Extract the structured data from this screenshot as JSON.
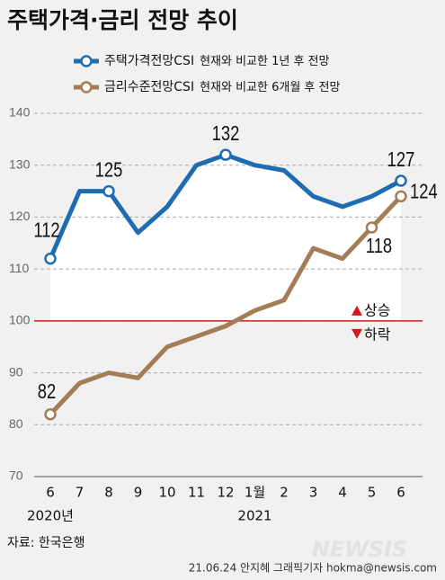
{
  "chart_data": {
    "type": "line",
    "title": "주택가격·금리 전망 추이",
    "categories": [
      "6",
      "7",
      "8",
      "9",
      "10",
      "11",
      "12",
      "1월",
      "2",
      "3",
      "4",
      "5",
      "6"
    ],
    "year_labels": [
      "2020년",
      null,
      null,
      null,
      null,
      null,
      null,
      "2021",
      null,
      null,
      null,
      null,
      null
    ],
    "series": [
      {
        "name": "주택가격전망CSI",
        "description": "현재와 비교한 1년 후 전망",
        "color": "#1f6cb0",
        "values": [
          112,
          125,
          125,
          117,
          122,
          130,
          132,
          130,
          129,
          124,
          122,
          124,
          127
        ],
        "value_labels": [
          "112",
          null,
          "125",
          null,
          null,
          null,
          "132",
          null,
          null,
          null,
          null,
          null,
          "127"
        ]
      },
      {
        "name": "금리수준전망CSI",
        "description": "현재와 비교한 6개월 후 전망",
        "color": "#a37d55",
        "values": [
          82,
          88,
          90,
          89,
          95,
          97,
          99,
          102,
          104,
          114,
          112,
          118,
          124
        ],
        "value_labels": [
          "82",
          null,
          null,
          null,
          null,
          null,
          null,
          null,
          null,
          null,
          null,
          "118",
          "124"
        ]
      }
    ],
    "ylim": [
      70,
      140
    ],
    "yticks": [
      70,
      80,
      90,
      100,
      110,
      120,
      130,
      140
    ],
    "grid": true,
    "reference_line": {
      "value": 100,
      "color": "#d7191c",
      "up_label": "상승",
      "down_label": "하락"
    },
    "source": "자료: 한국은행",
    "credit": "21.06.24 안지혜 그래픽기자 hokma@newsis.com",
    "watermark": "NEWSIS"
  }
}
